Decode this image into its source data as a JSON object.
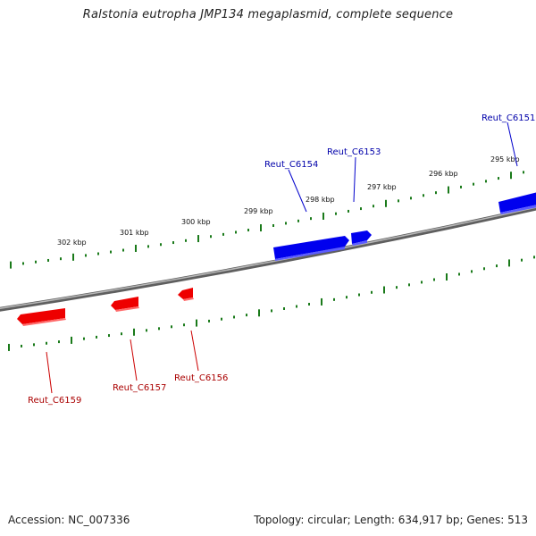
{
  "title": "Ralstonia eutropha JMP134 megaplasmid, complete sequence",
  "footer": {
    "accession": "Accession: NC_007336",
    "summary": "Topology: circular; Length: 634,917 bp; Genes: 513"
  },
  "colors": {
    "forward_gene": "#0000ee",
    "reverse_gene": "#ee0000",
    "ticks": "#1a7a1a",
    "backbone": "#777777"
  },
  "scale_labels": [
    "302 kbp",
    "301 kbp",
    "300 kbp",
    "299 kbp",
    "298 kbp",
    "297 kbp",
    "296 kbp",
    "295 kbp"
  ],
  "genes": [
    {
      "label": "Reut_C6151",
      "strand": "forward"
    },
    {
      "label": "Reut_C6153",
      "strand": "forward"
    },
    {
      "label": "Reut_C6154",
      "strand": "forward"
    },
    {
      "label": "Reut_C6156",
      "strand": "reverse"
    },
    {
      "label": "Reut_C6157",
      "strand": "reverse"
    },
    {
      "label": "Reut_C6159",
      "strand": "reverse"
    }
  ]
}
